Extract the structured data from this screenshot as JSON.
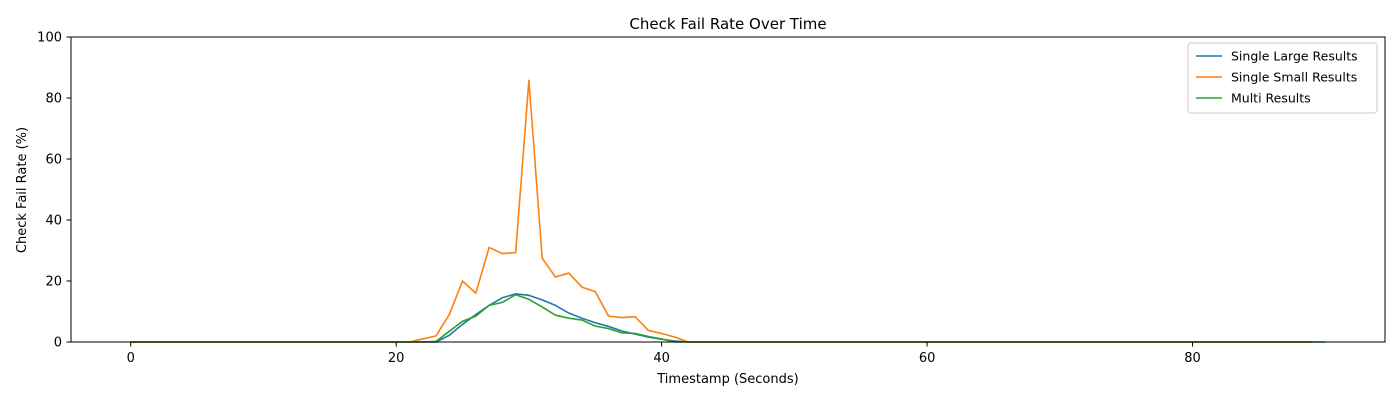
{
  "chart_data": {
    "type": "line",
    "title": "Check Fail Rate Over Time",
    "xlabel": "Timestamp (Seconds)",
    "ylabel": "Check Fail Rate (%)",
    "xlim": [
      -4.5,
      94.5
    ],
    "ylim": [
      0,
      100
    ],
    "xticks": [
      0,
      20,
      40,
      60,
      80
    ],
    "yticks": [
      0,
      20,
      40,
      60,
      80,
      100
    ],
    "grid": false,
    "legend": "top-right",
    "series": [
      {
        "name": "Single Large Results",
        "color": "#1f77b4",
        "x": [
          0,
          1,
          2,
          3,
          4,
          5,
          6,
          7,
          8,
          9,
          10,
          11,
          12,
          13,
          14,
          15,
          16,
          17,
          18,
          19,
          20,
          21,
          22,
          23,
          24,
          25,
          26,
          27,
          28,
          29,
          30,
          31,
          32,
          33,
          34,
          35,
          36,
          37,
          38,
          39,
          40,
          41,
          42,
          43,
          44,
          45,
          46,
          47,
          48,
          49,
          50,
          51,
          52,
          53,
          54,
          55,
          56,
          57,
          58,
          59,
          60,
          61,
          62,
          63,
          64,
          65,
          66,
          67,
          68,
          69,
          70,
          71,
          72,
          73,
          74,
          75,
          76,
          77,
          78,
          79,
          80,
          81,
          82,
          83,
          84,
          85,
          86,
          87,
          88,
          89,
          90
        ],
        "y": [
          0,
          0,
          0,
          0,
          0,
          0,
          0,
          0,
          0,
          0,
          0,
          0,
          0,
          0,
          0,
          0,
          0,
          0,
          0,
          0,
          0,
          0,
          0,
          0,
          2.2,
          5.8,
          9,
          12,
          14.5,
          15.8,
          15.3,
          13.8,
          12,
          9.5,
          7.8,
          6.3,
          5.1,
          3.6,
          2.6,
          1.6,
          0.9,
          0.3,
          0,
          0,
          0,
          0,
          0,
          0,
          0,
          0,
          0,
          0,
          0,
          0,
          0,
          0,
          0,
          0,
          0,
          0,
          0,
          0,
          0,
          0,
          0,
          0,
          0,
          0,
          0,
          0,
          0,
          0,
          0,
          0,
          0,
          0,
          0,
          0,
          0,
          0,
          0,
          0,
          0,
          0,
          0,
          0,
          0,
          0,
          0,
          0,
          0
        ]
      },
      {
        "name": "Single Small Results",
        "color": "#ff7f0e",
        "x": [
          0,
          1,
          2,
          3,
          4,
          5,
          6,
          7,
          8,
          9,
          10,
          11,
          12,
          13,
          14,
          15,
          16,
          17,
          18,
          19,
          20,
          21,
          22,
          23,
          24,
          25,
          26,
          27,
          28,
          29,
          30,
          31,
          32,
          33,
          34,
          35,
          36,
          37,
          38,
          39,
          40,
          41,
          42,
          43,
          44,
          45,
          46,
          47,
          48,
          49,
          50,
          51,
          52,
          53,
          54,
          55,
          56,
          57,
          58,
          59,
          60,
          61,
          62,
          63,
          64,
          65,
          66,
          67,
          68,
          69,
          70,
          71,
          72,
          73,
          74,
          75,
          76,
          77,
          78,
          79,
          80,
          81,
          82,
          83,
          84,
          85,
          86,
          87,
          88,
          89
        ],
        "y": [
          0,
          0,
          0,
          0,
          0,
          0,
          0,
          0,
          0,
          0,
          0,
          0,
          0,
          0,
          0,
          0,
          0,
          0,
          0,
          0,
          0,
          0,
          1,
          2,
          9,
          20,
          16,
          31,
          29,
          29.3,
          85.8,
          27.5,
          21.3,
          22.6,
          18,
          16.5,
          8.5,
          8,
          8.3,
          3.8,
          2.8,
          1.6,
          0,
          0,
          0,
          0,
          0,
          0,
          0,
          0,
          0,
          0,
          0,
          0,
          0,
          0,
          0,
          0,
          0,
          0,
          0,
          0,
          0,
          0,
          0,
          0,
          0,
          0,
          0,
          0,
          0,
          0,
          0,
          0,
          0,
          0,
          0,
          0,
          0,
          0,
          0,
          0,
          0,
          0,
          0,
          0,
          0,
          0,
          0,
          0
        ]
      },
      {
        "name": "Multi Results",
        "color": "#2ca02c",
        "x": [
          0,
          1,
          2,
          3,
          4,
          5,
          6,
          7,
          8,
          9,
          10,
          11,
          12,
          13,
          14,
          15,
          16,
          17,
          18,
          19,
          20,
          21,
          22,
          23,
          24,
          25,
          26,
          27,
          28,
          29,
          30,
          31,
          32,
          33,
          34,
          35,
          36,
          37,
          38,
          39,
          40,
          41,
          42,
          43,
          44,
          45,
          46,
          47,
          48,
          49,
          50,
          51,
          52,
          53,
          54,
          55,
          56,
          57,
          58,
          59,
          60,
          61,
          62,
          63,
          64,
          65,
          66,
          67,
          68,
          69,
          70,
          71,
          72,
          73,
          74,
          75,
          76,
          77,
          78,
          79,
          80,
          81,
          82,
          83,
          84,
          85,
          86,
          87,
          88,
          89
        ],
        "y": [
          0,
          0,
          0,
          0,
          0,
          0,
          0,
          0,
          0,
          0,
          0,
          0,
          0,
          0,
          0,
          0,
          0,
          0,
          0,
          0,
          0,
          0,
          0,
          0.2,
          3.5,
          6.8,
          8.5,
          12,
          13,
          15.5,
          14,
          11.5,
          8.8,
          7.8,
          7.2,
          5.2,
          4.4,
          3,
          2.8,
          1.8,
          1,
          0,
          0,
          0,
          0,
          0,
          0,
          0,
          0,
          0,
          0,
          0,
          0,
          0,
          0,
          0,
          0,
          0,
          0,
          0,
          0,
          0,
          0,
          0,
          0,
          0,
          0,
          0,
          0,
          0,
          0,
          0,
          0,
          0,
          0,
          0,
          0,
          0,
          0,
          0,
          0,
          0,
          0,
          0,
          0,
          0,
          0,
          0,
          0,
          0
        ]
      }
    ]
  }
}
